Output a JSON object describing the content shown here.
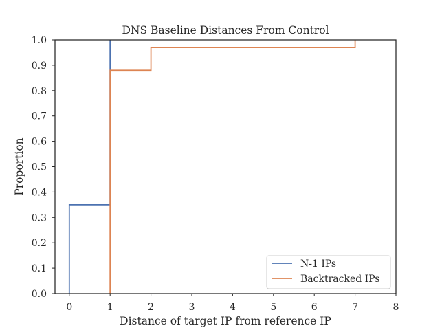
{
  "chart_data": {
    "type": "step",
    "title": "DNS Baseline Distances From Control",
    "xlabel": "Distance of target IP from reference IP",
    "ylabel": "Proportion",
    "xlim": [
      -0.35,
      8
    ],
    "ylim": [
      0.0,
      1.0
    ],
    "xticks": [
      0,
      1,
      2,
      3,
      4,
      5,
      6,
      7,
      8
    ],
    "yticks": [
      0.0,
      0.1,
      0.2,
      0.3,
      0.4,
      0.5,
      0.6,
      0.7,
      0.8,
      0.9,
      1.0
    ],
    "grid": false,
    "legend_position": "lower-right",
    "series": [
      {
        "name": "N-1 IPs",
        "color": "#4c72b0",
        "points": [
          [
            0,
            0.0
          ],
          [
            0,
            0.35
          ],
          [
            1,
            0.35
          ],
          [
            1,
            1.0
          ]
        ]
      },
      {
        "name": "Backtracked IPs",
        "color": "#dd8452",
        "points": [
          [
            1,
            0.0
          ],
          [
            1,
            0.88
          ],
          [
            2,
            0.88
          ],
          [
            2,
            0.97
          ],
          [
            7,
            0.97
          ],
          [
            7,
            1.0
          ]
        ]
      }
    ]
  }
}
